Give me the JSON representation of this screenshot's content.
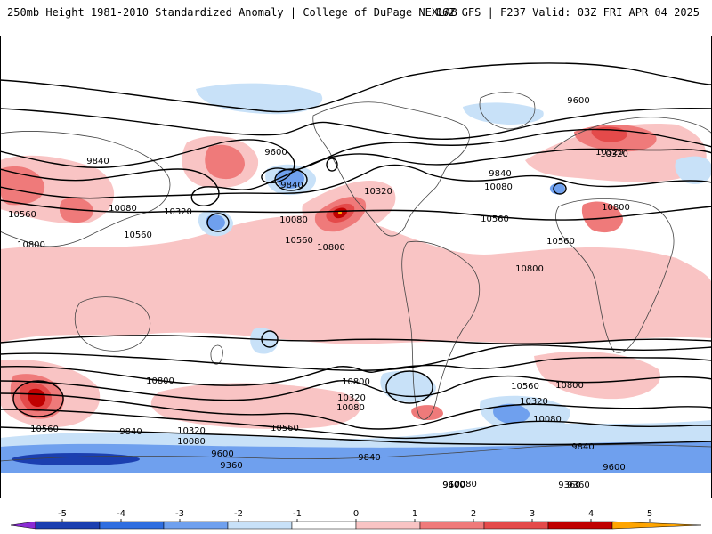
{
  "header": {
    "title": "250mb Height 1981-2010 Standardized Anomaly | College of DuPage NEXLAB",
    "run_info": "06Z GFS | F237 Valid: 03Z FRI APR 04 2025"
  },
  "colors": {
    "ocean": "#ffffff",
    "pos_1": "#f9c4c4",
    "pos_2": "#ef7a7a",
    "pos_3": "#e44a4a",
    "pos_4": "#c00000",
    "pos_5": "#ffa500",
    "neg_1": "#c8e1f8",
    "neg_2": "#6fa0ee",
    "neg_3": "#2f6ee0",
    "neg_4": "#1b3fb0",
    "neg_5": "#8a2bd4",
    "coast": "#444444",
    "contour": "#000000"
  },
  "contour_labels": [
    {
      "text": "9600"
    },
    {
      "text": "9600"
    },
    {
      "text": "9600"
    },
    {
      "text": "9840"
    },
    {
      "text": "9840"
    },
    {
      "text": "9840"
    },
    {
      "text": "10080"
    },
    {
      "text": "10080"
    },
    {
      "text": "10080"
    },
    {
      "text": "10320"
    },
    {
      "text": "10320"
    },
    {
      "text": "10320"
    },
    {
      "text": "10560"
    },
    {
      "text": "10560"
    },
    {
      "text": "10560"
    },
    {
      "text": "10560"
    },
    {
      "text": "10800"
    },
    {
      "text": "10800"
    },
    {
      "text": "10800"
    },
    {
      "text": "10800"
    },
    {
      "text": "10800"
    },
    {
      "text": "10800"
    },
    {
      "text": "10800"
    },
    {
      "text": "10560"
    },
    {
      "text": "10320"
    },
    {
      "text": "10080"
    },
    {
      "text": "10560"
    },
    {
      "text": "10320"
    },
    {
      "text": "10080"
    },
    {
      "text": "9840"
    },
    {
      "text": "9600"
    },
    {
      "text": "9360"
    },
    {
      "text": "10560"
    },
    {
      "text": "10320"
    },
    {
      "text": "10080"
    },
    {
      "text": "9840"
    },
    {
      "text": "9600"
    },
    {
      "text": "9360"
    },
    {
      "text": "10080"
    },
    {
      "text": "10320"
    },
    {
      "text": "10560"
    },
    {
      "text": "9840"
    },
    {
      "text": "9600"
    },
    {
      "text": "9360"
    }
  ],
  "colorbar": {
    "ticks": [
      "-5",
      "-4",
      "-3",
      "-2",
      "-1",
      "0",
      "1",
      "2",
      "3",
      "4",
      "5"
    ],
    "bins": [
      "neg_5",
      "neg_4",
      "neg_3",
      "neg_2",
      "neg_1",
      "ocean",
      "pos_1",
      "pos_2",
      "pos_3",
      "pos_4",
      "pos_5"
    ]
  }
}
